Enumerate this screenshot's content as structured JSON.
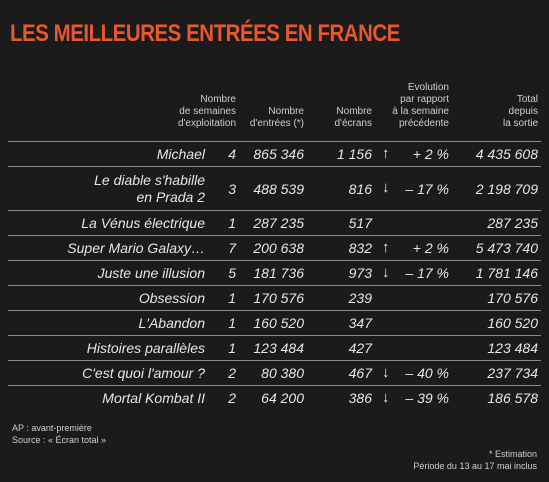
{
  "header": {
    "title": "LES MEILLEURES ENTRÉES EN FRANCE"
  },
  "table": {
    "columns": [
      "Nombre\nde semaines\nd'exploitation",
      "Nombre\nd'entrées (*)",
      "Nombre\nd'écrans",
      "Evolution\npar rapport\nà la semaine\nprécédente",
      "Total\ndepuis\nla sortie"
    ],
    "rows": [
      [
        "Michael",
        "4",
        "865 346",
        "1 156",
        "+ 2 %",
        "4 435 608"
      ],
      [
        "Le diable s'habille\nen Prada 2",
        "3",
        "488 539",
        "816",
        "– 17 %",
        "2 198 709"
      ],
      [
        "La Vénus électrique",
        "1",
        "287 235",
        "517",
        null,
        "287 235"
      ],
      [
        "Super Mario Galaxy…",
        "7",
        "200 638",
        "832",
        "+ 2 %",
        "5 473 740"
      ],
      [
        "Juste une illusion",
        "5",
        "181 736",
        "973",
        "– 17 %",
        "1 781 146"
      ],
      [
        "Obsession",
        "1",
        "170 576",
        "239",
        null,
        "170 576"
      ],
      [
        "L'Abandon",
        "1",
        "160 520",
        "347",
        null,
        "160 520"
      ],
      [
        "Histoires parallèles",
        "1",
        "123 484",
        "427",
        null,
        "123 484"
      ],
      [
        "C'est quoi l'amour ?",
        "2",
        "80 380",
        "467",
        "– 40 %",
        "237 734"
      ],
      [
        "Mortal Kombat II",
        "2",
        "64 200",
        "386",
        "– 39 %",
        "186 578"
      ]
    ]
  },
  "footer": {
    "left": [
      "AP : avant-première",
      "Source : « Écran total »"
    ],
    "right": [
      "* Estimation",
      "Période du 13 au 17 mai inclus"
    ]
  }
}
